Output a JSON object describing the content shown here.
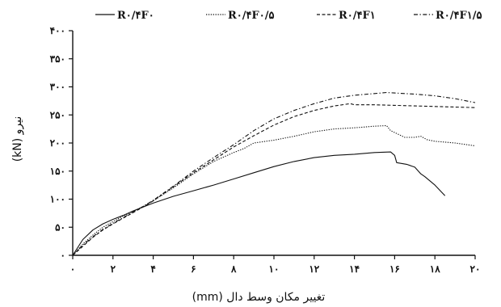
{
  "chart_data": {
    "type": "line",
    "xlabel": "تغییر مکان وسط دال (mm)",
    "ylabel": "نیرو (kN)",
    "xlim": [
      0,
      20
    ],
    "ylim": [
      0,
      400
    ],
    "x_ticks": [
      {
        "value": 0,
        "label": "۰"
      },
      {
        "value": 2,
        "label": "۲"
      },
      {
        "value": 4,
        "label": "۴"
      },
      {
        "value": 6,
        "label": "۶"
      },
      {
        "value": 8,
        "label": "۸"
      },
      {
        "value": 10,
        "label": "۱۰"
      },
      {
        "value": 12,
        "label": "۱۲"
      },
      {
        "value": 14,
        "label": "۱۴"
      },
      {
        "value": 16,
        "label": "۱۶"
      },
      {
        "value": 18,
        "label": "۱۸"
      },
      {
        "value": 20,
        "label": "۲۰"
      }
    ],
    "y_ticks": [
      {
        "value": 0,
        "label": "۰"
      },
      {
        "value": 50,
        "label": "۵۰"
      },
      {
        "value": 100,
        "label": "۱۰۰"
      },
      {
        "value": 150,
        "label": "۱۵۰"
      },
      {
        "value": 200,
        "label": "۲۰۰"
      },
      {
        "value": 250,
        "label": "۲۵۰"
      },
      {
        "value": 300,
        "label": "۳۰۰"
      },
      {
        "value": 350,
        "label": "۳۵۰"
      },
      {
        "value": 400,
        "label": "۴۰۰"
      }
    ],
    "grid": false,
    "legend_position": "top",
    "series": [
      {
        "name": "R۰/۴F۰",
        "dash": "solid",
        "points": [
          [
            0,
            0
          ],
          [
            0.5,
            28
          ],
          [
            1,
            45
          ],
          [
            1.5,
            56
          ],
          [
            2,
            64
          ],
          [
            2.5,
            71
          ],
          [
            3,
            79
          ],
          [
            3.5,
            86
          ],
          [
            4,
            93
          ],
          [
            5,
            105
          ],
          [
            6,
            115
          ],
          [
            7,
            125
          ],
          [
            8,
            136
          ],
          [
            9,
            147
          ],
          [
            10,
            158
          ],
          [
            11,
            167
          ],
          [
            12,
            174
          ],
          [
            13,
            178
          ],
          [
            14,
            180
          ],
          [
            15,
            183
          ],
          [
            15.8,
            184
          ],
          [
            16,
            178
          ],
          [
            16.1,
            165
          ],
          [
            16.6,
            162
          ],
          [
            17,
            157
          ],
          [
            17.3,
            145
          ],
          [
            17.5,
            140
          ],
          [
            18,
            125
          ],
          [
            18.5,
            106
          ]
        ]
      },
      {
        "name": "R۰/۴F۰/۵",
        "dash": "dotted",
        "points": [
          [
            0,
            0
          ],
          [
            0.5,
            20
          ],
          [
            1,
            36
          ],
          [
            1.5,
            50
          ],
          [
            2,
            60
          ],
          [
            2.5,
            70
          ],
          [
            3,
            78
          ],
          [
            3.5,
            87
          ],
          [
            4,
            97
          ],
          [
            5,
            120
          ],
          [
            6,
            145
          ],
          [
            7,
            167
          ],
          [
            8,
            183
          ],
          [
            8.5,
            190
          ],
          [
            9,
            200
          ],
          [
            10,
            205
          ],
          [
            11,
            212
          ],
          [
            12,
            220
          ],
          [
            13,
            225
          ],
          [
            14,
            227
          ],
          [
            15,
            230
          ],
          [
            15.6,
            231
          ],
          [
            15.8,
            222
          ],
          [
            16.5,
            210
          ],
          [
            17,
            210
          ],
          [
            17.3,
            212
          ],
          [
            17.6,
            206
          ],
          [
            18,
            203
          ],
          [
            19,
            200
          ],
          [
            20,
            195
          ]
        ]
      },
      {
        "name": "R۰/۴F۱",
        "dash": "dashed",
        "points": [
          [
            0,
            0
          ],
          [
            0.5,
            16
          ],
          [
            1,
            32
          ],
          [
            1.5,
            45
          ],
          [
            2,
            56
          ],
          [
            2.5,
            66
          ],
          [
            3,
            76
          ],
          [
            3.5,
            86
          ],
          [
            4,
            97
          ],
          [
            5,
            122
          ],
          [
            6,
            147
          ],
          [
            7,
            170
          ],
          [
            8,
            193
          ],
          [
            9,
            213
          ],
          [
            10,
            232
          ],
          [
            11,
            247
          ],
          [
            12,
            258
          ],
          [
            13,
            266
          ],
          [
            13.8,
            270
          ],
          [
            14,
            268
          ],
          [
            15,
            268
          ],
          [
            16,
            267
          ],
          [
            17,
            266
          ],
          [
            18,
            265
          ],
          [
            19,
            264
          ],
          [
            20,
            263
          ]
        ]
      },
      {
        "name": "R۰/۴F۱/۵",
        "dash": "dashdot",
        "points": [
          [
            0,
            0
          ],
          [
            0.5,
            18
          ],
          [
            1,
            33
          ],
          [
            1.5,
            46
          ],
          [
            2,
            57
          ],
          [
            2.5,
            67
          ],
          [
            3,
            77
          ],
          [
            3.5,
            87
          ],
          [
            4,
            98
          ],
          [
            5,
            123
          ],
          [
            6,
            150
          ],
          [
            7,
            174
          ],
          [
            8,
            197
          ],
          [
            9,
            222
          ],
          [
            10,
            243
          ],
          [
            11,
            258
          ],
          [
            12,
            270
          ],
          [
            13,
            280
          ],
          [
            14,
            285
          ],
          [
            15,
            288
          ],
          [
            15.6,
            290
          ],
          [
            16,
            289
          ],
          [
            17,
            287
          ],
          [
            18,
            284
          ],
          [
            19,
            279
          ],
          [
            20,
            272
          ]
        ]
      }
    ]
  }
}
